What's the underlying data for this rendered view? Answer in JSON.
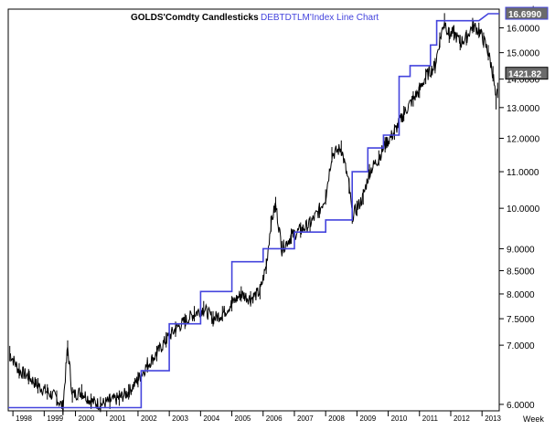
{
  "chart_data": {
    "type": "line",
    "title_left": "GOLDS'Comdty  Candlesticks",
    "title_right": "DEBTDTLM'Index  Line  Chart",
    "scale_label": "Log",
    "period_label": "Week",
    "x_ticks": [
      "1998",
      "1999",
      "2000",
      "2001",
      "2002",
      "2003",
      "2004",
      "2005",
      "2006",
      "2007",
      "2008",
      "2009",
      "2010",
      "2011",
      "2012",
      "2013"
    ],
    "y_ticks": [
      "16.0000",
      "15.0000",
      "14.0000",
      "13.0000",
      "12.0000",
      "11.0000",
      "10.0000",
      "9.0000",
      "8.5000",
      "8.0000",
      "7.5000",
      "7.0000",
      "6.0000"
    ],
    "xlim": [
      1997.85,
      2013.55
    ],
    "ylim": [
      5.9,
      16.8
    ],
    "y_scale": "log",
    "grid": false,
    "series": [
      {
        "name": "GOLDS'Comdty",
        "style": "candlestick",
        "color": "#000000",
        "x": [
          1997.9,
          1998.2,
          1998.5,
          1998.8,
          1999.1,
          1999.4,
          1999.6,
          1999.75,
          1999.9,
          2000.2,
          2000.5,
          2000.8,
          2001.1,
          2001.4,
          2001.7,
          2002.0,
          2002.3,
          2002.6,
          2002.9,
          2003.2,
          2003.5,
          2003.8,
          2004.1,
          2004.4,
          2004.7,
          2005.0,
          2005.3,
          2005.6,
          2005.9,
          2006.1,
          2006.25,
          2006.4,
          2006.6,
          2006.9,
          2007.2,
          2007.5,
          2007.8,
          2008.0,
          2008.2,
          2008.5,
          2008.75,
          2008.85,
          2009.0,
          2009.2,
          2009.4,
          2009.7,
          2009.9,
          2010.2,
          2010.5,
          2010.8,
          2011.0,
          2011.2,
          2011.5,
          2011.65,
          2011.8,
          2011.95,
          2012.1,
          2012.3,
          2012.5,
          2012.7,
          2012.9,
          2013.05,
          2013.2,
          2013.35,
          2013.45,
          2013.5
        ],
        "values": [
          6.85,
          6.55,
          6.45,
          6.3,
          6.2,
          6.1,
          5.95,
          6.95,
          6.15,
          6.2,
          6.05,
          6.0,
          6.05,
          6.1,
          6.2,
          6.4,
          6.65,
          6.85,
          7.1,
          7.3,
          7.45,
          7.6,
          7.7,
          7.5,
          7.6,
          7.8,
          8.0,
          7.9,
          8.05,
          8.6,
          9.6,
          10.1,
          9.0,
          9.3,
          9.45,
          9.6,
          9.95,
          10.3,
          11.5,
          11.7,
          10.6,
          9.8,
          10.0,
          10.3,
          11.0,
          11.4,
          11.8,
          12.2,
          12.8,
          13.3,
          13.6,
          14.1,
          14.5,
          15.5,
          16.3,
          15.7,
          15.8,
          15.4,
          15.6,
          16.1,
          15.9,
          15.5,
          15.0,
          14.2,
          13.2,
          13.6
        ]
      },
      {
        "name": "DEBTDTLM'Index",
        "style": "step-line",
        "color": "#4444dd",
        "x": [
          1997.85,
          2002.1,
          2002.1,
          2003.0,
          2003.0,
          2004.0,
          2004.0,
          2005.0,
          2005.0,
          2006.0,
          2006.0,
          2007.0,
          2007.0,
          2008.0,
          2008.0,
          2008.85,
          2008.85,
          2009.35,
          2009.35,
          2009.85,
          2009.85,
          2010.35,
          2010.35,
          2010.7,
          2010.7,
          2011.35,
          2011.35,
          2011.55,
          2011.55,
          2012.9,
          2013.2,
          2013.55
        ],
        "values": [
          5.95,
          5.95,
          6.55,
          6.55,
          7.4,
          7.4,
          8.05,
          8.05,
          8.7,
          8.7,
          9.0,
          9.0,
          9.4,
          9.4,
          9.7,
          9.7,
          11.0,
          11.0,
          11.7,
          11.7,
          12.1,
          12.1,
          14.1,
          14.1,
          14.5,
          14.5,
          15.3,
          15.3,
          16.3,
          16.3,
          16.6,
          16.6
        ]
      }
    ],
    "last_values": [
      {
        "label": "16.6990",
        "color": "#4444dd"
      },
      {
        "label": "1421.82",
        "color": "#000000"
      }
    ]
  }
}
